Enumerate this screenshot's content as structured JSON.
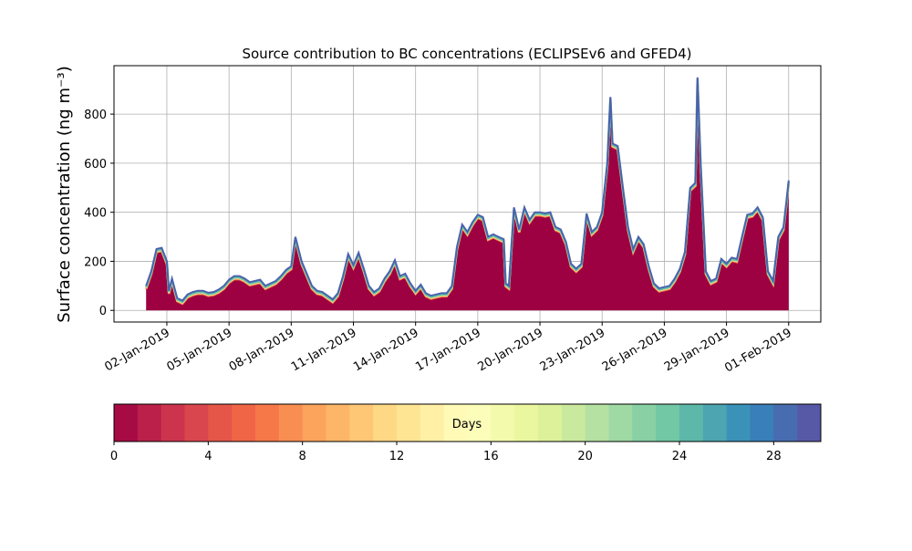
{
  "chart_data": {
    "type": "area",
    "title": "Source contribution to BC concentrations (ECLIPSEv6 and GFED4)",
    "ylabel": "Surface concentration (ng m⁻³)",
    "x": [
      1.0,
      1.25,
      1.5,
      1.75,
      2.0,
      2.1,
      2.25,
      2.5,
      2.75,
      3.0,
      3.25,
      3.5,
      3.75,
      4.0,
      4.25,
      4.5,
      4.75,
      5.0,
      5.25,
      5.5,
      5.75,
      6.0,
      6.25,
      6.5,
      6.75,
      7.0,
      7.25,
      7.5,
      7.75,
      8.0,
      8.2,
      8.5,
      8.75,
      9.0,
      9.25,
      9.5,
      9.75,
      10.0,
      10.25,
      10.5,
      10.75,
      11.0,
      11.25,
      11.5,
      11.75,
      12.0,
      12.25,
      12.5,
      12.75,
      13.0,
      13.25,
      13.5,
      13.75,
      14.0,
      14.25,
      14.5,
      14.75,
      15.0,
      15.25,
      15.5,
      15.75,
      16.0,
      16.25,
      16.5,
      16.75,
      17.0,
      17.25,
      17.5,
      17.75,
      18.0,
      18.25,
      18.35,
      18.5,
      18.75,
      19.0,
      19.25,
      19.5,
      19.75,
      20.0,
      20.25,
      20.5,
      20.75,
      21.0,
      21.25,
      21.5,
      21.75,
      22.0,
      22.25,
      22.5,
      22.75,
      23.0,
      23.25,
      23.4,
      23.5,
      23.75,
      24.0,
      24.25,
      24.5,
      24.75,
      25.0,
      25.25,
      25.5,
      25.75,
      26.0,
      26.25,
      26.5,
      26.75,
      27.0,
      27.25,
      27.5,
      27.6,
      27.75,
      28.0,
      28.25,
      28.5,
      28.75,
      29.0,
      29.25,
      29.5,
      29.75,
      30.0,
      30.25,
      30.5,
      30.75,
      31.0,
      31.25,
      31.5,
      31.75,
      31.9,
      32.0
    ],
    "values": [
      100,
      160,
      250,
      255,
      200,
      80,
      130,
      50,
      40,
      65,
      75,
      80,
      80,
      72,
      75,
      85,
      100,
      125,
      140,
      140,
      130,
      115,
      120,
      125,
      100,
      110,
      120,
      140,
      165,
      180,
      300,
      200,
      150,
      100,
      80,
      75,
      60,
      45,
      70,
      140,
      230,
      185,
      235,
      170,
      100,
      75,
      90,
      130,
      160,
      205,
      140,
      150,
      110,
      80,
      105,
      70,
      60,
      65,
      70,
      70,
      100,
      260,
      350,
      320,
      360,
      390,
      380,
      300,
      310,
      300,
      290,
      110,
      100,
      420,
      330,
      420,
      370,
      400,
      400,
      395,
      400,
      340,
      330,
      280,
      190,
      170,
      190,
      395,
      320,
      340,
      400,
      600,
      870,
      680,
      670,
      500,
      340,
      250,
      300,
      270,
      180,
      110,
      90,
      95,
      100,
      130,
      170,
      240,
      500,
      520,
      950,
      600,
      160,
      120,
      130,
      210,
      190,
      215,
      210,
      300,
      390,
      395,
      420,
      380,
      160,
      120,
      300,
      340,
      450,
      530
    ],
    "color": "#9e0142",
    "line_color": "#4a62ad",
    "xlim": [
      -0.55,
      33.55
    ],
    "xticks": [
      {
        "value": 2,
        "label": "02-Jan-2019"
      },
      {
        "value": 5,
        "label": "05-Jan-2019"
      },
      {
        "value": 8,
        "label": "08-Jan-2019"
      },
      {
        "value": 11,
        "label": "11-Jan-2019"
      },
      {
        "value": 14,
        "label": "14-Jan-2019"
      },
      {
        "value": 17,
        "label": "17-Jan-2019"
      },
      {
        "value": 20,
        "label": "20-Jan-2019"
      },
      {
        "value": 23,
        "label": "23-Jan-2019"
      },
      {
        "value": 26,
        "label": "26-Jan-2019"
      },
      {
        "value": 29,
        "label": "29-Jan-2019"
      },
      {
        "value": 32,
        "label": "01-Feb-2019"
      }
    ],
    "ylim": [
      -47.5,
      997.5
    ],
    "yticks": [
      0,
      200,
      400,
      600,
      800
    ],
    "grid": true,
    "colorbar": {
      "label": "Days",
      "lim": [
        0,
        30
      ],
      "step": 1,
      "ticks": [
        0,
        4,
        8,
        12,
        16,
        20,
        24,
        28
      ],
      "colormap": [
        "#9e0142",
        "#d53e4f",
        "#f46d43",
        "#fdae61",
        "#fee08b",
        "#ffffbf",
        "#e6f598",
        "#abdda4",
        "#66c2a5",
        "#3288bd",
        "#5e4fa2"
      ]
    }
  }
}
